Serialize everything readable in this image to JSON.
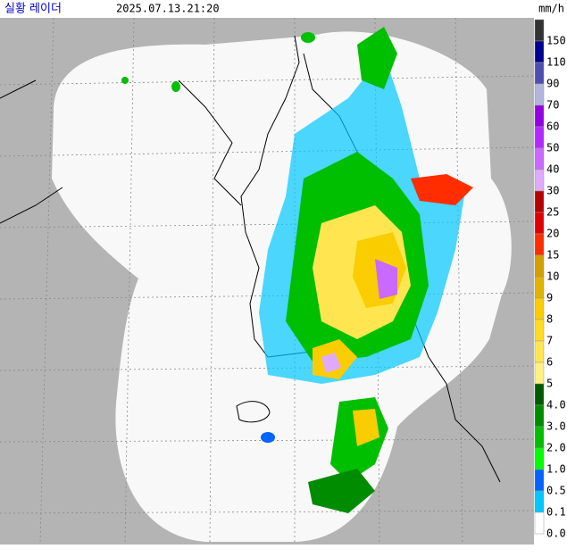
{
  "header": {
    "title": "실황 레이더",
    "time": "2025.07.13.21:20",
    "unit": "mm/h"
  },
  "legend": {
    "items": [
      {
        "label": "150",
        "color": "#333333"
      },
      {
        "label": "110",
        "color": "#000390"
      },
      {
        "label": "90",
        "color": "#4c4eb1"
      },
      {
        "label": "70",
        "color": "#b3b4de"
      },
      {
        "label": "60",
        "color": "#9300e4"
      },
      {
        "label": "50",
        "color": "#b329ff"
      },
      {
        "label": "40",
        "color": "#c969ff"
      },
      {
        "label": "30",
        "color": "#dfa9ff"
      },
      {
        "label": "25",
        "color": "#b40000"
      },
      {
        "label": "20",
        "color": "#e00000"
      },
      {
        "label": "15",
        "color": "#ff2d00"
      },
      {
        "label": "10",
        "color": "#d2a000"
      },
      {
        "label": "9",
        "color": "#e0b400"
      },
      {
        "label": "8",
        "color": "#f9cd00"
      },
      {
        "label": "7",
        "color": "#ffdc1f"
      },
      {
        "label": "6",
        "color": "#ffe650"
      },
      {
        "label": "5",
        "color": "#fff082"
      },
      {
        "label": "4.0",
        "color": "#005a00"
      },
      {
        "label": "3.0",
        "color": "#008c00"
      },
      {
        "label": "2.0",
        "color": "#00be00"
      },
      {
        "label": "1.0",
        "color": "#00ff00"
      },
      {
        "label": "0.5",
        "color": "#0064ff"
      },
      {
        "label": "0.1",
        "color": "#00c8ff"
      },
      {
        "label": "0.0",
        "color": "#ffffff"
      }
    ]
  }
}
